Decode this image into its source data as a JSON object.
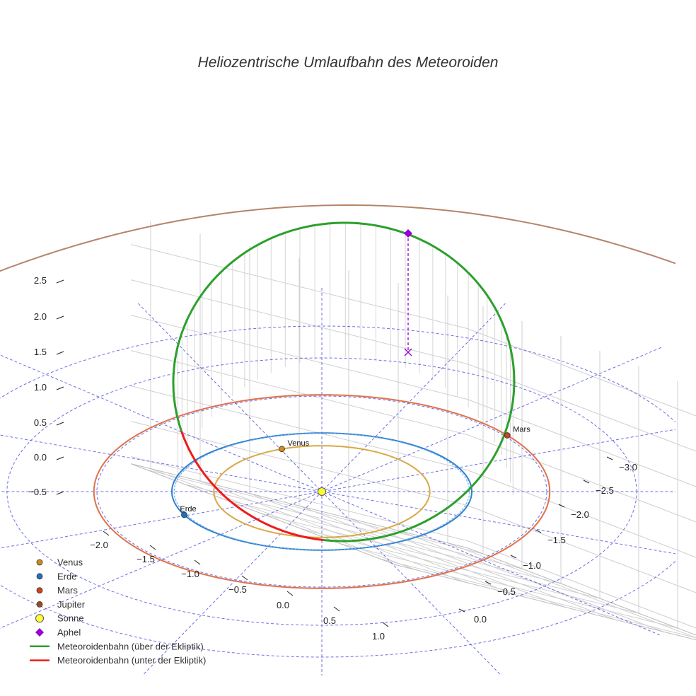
{
  "chart_data": {
    "type": "line",
    "projection": "3d",
    "title": "Heliozentrische Umlaufbahn des Meteoroiden",
    "axes": {
      "x": {
        "ticks": [
          "−2.0",
          "−1.5",
          "−1.0",
          "−0.5",
          "0.0",
          "0.5",
          "1.0"
        ],
        "range": [
          -2.2,
          1.2
        ]
      },
      "y": {
        "ticks": [
          "−3.0",
          "−2.5",
          "−2.0",
          "−1.5",
          "−1.0",
          "−0.5",
          "0.0"
        ],
        "range": [
          -3.2,
          0.2
        ]
      },
      "z": {
        "ticks": [
          "2.5",
          "2.0",
          "1.5",
          "1.0",
          "0.5",
          "0.0",
          "−0.5"
        ],
        "range": [
          -0.6,
          2.7
        ]
      }
    },
    "planets": [
      {
        "name": "Venus",
        "label": "Venus",
        "orbit_radius_au": 0.72,
        "color": "#d9a845",
        "marker": "#d08a1e"
      },
      {
        "name": "Erde",
        "label": "Erde",
        "orbit_radius_au": 1.0,
        "color": "#2f7fd0",
        "marker": "#1f6fbf"
      },
      {
        "name": "Mars",
        "label": "Mars",
        "orbit_radius_au": 1.52,
        "color": "#e0724a",
        "marker": "#c9461c"
      },
      {
        "name": "Jupiter",
        "label": "",
        "orbit_radius_au": 5.2,
        "color": "#b5846a",
        "marker": "#9c4a1f"
      }
    ],
    "sun": {
      "name": "Sonne",
      "color": "#ffff33"
    },
    "aphel": {
      "name": "Aphel",
      "color": "#9400d3",
      "z_au": 2.5
    },
    "series": [
      {
        "name": "Meteoroidenbahn (über der Ekliptik)",
        "color": "#2ca02c"
      },
      {
        "name": "Meteoroidenbahn (unter der Ekliptik)",
        "color": "#ee1c1c"
      }
    ],
    "legend_position": "bottom-left",
    "grid": true
  }
}
